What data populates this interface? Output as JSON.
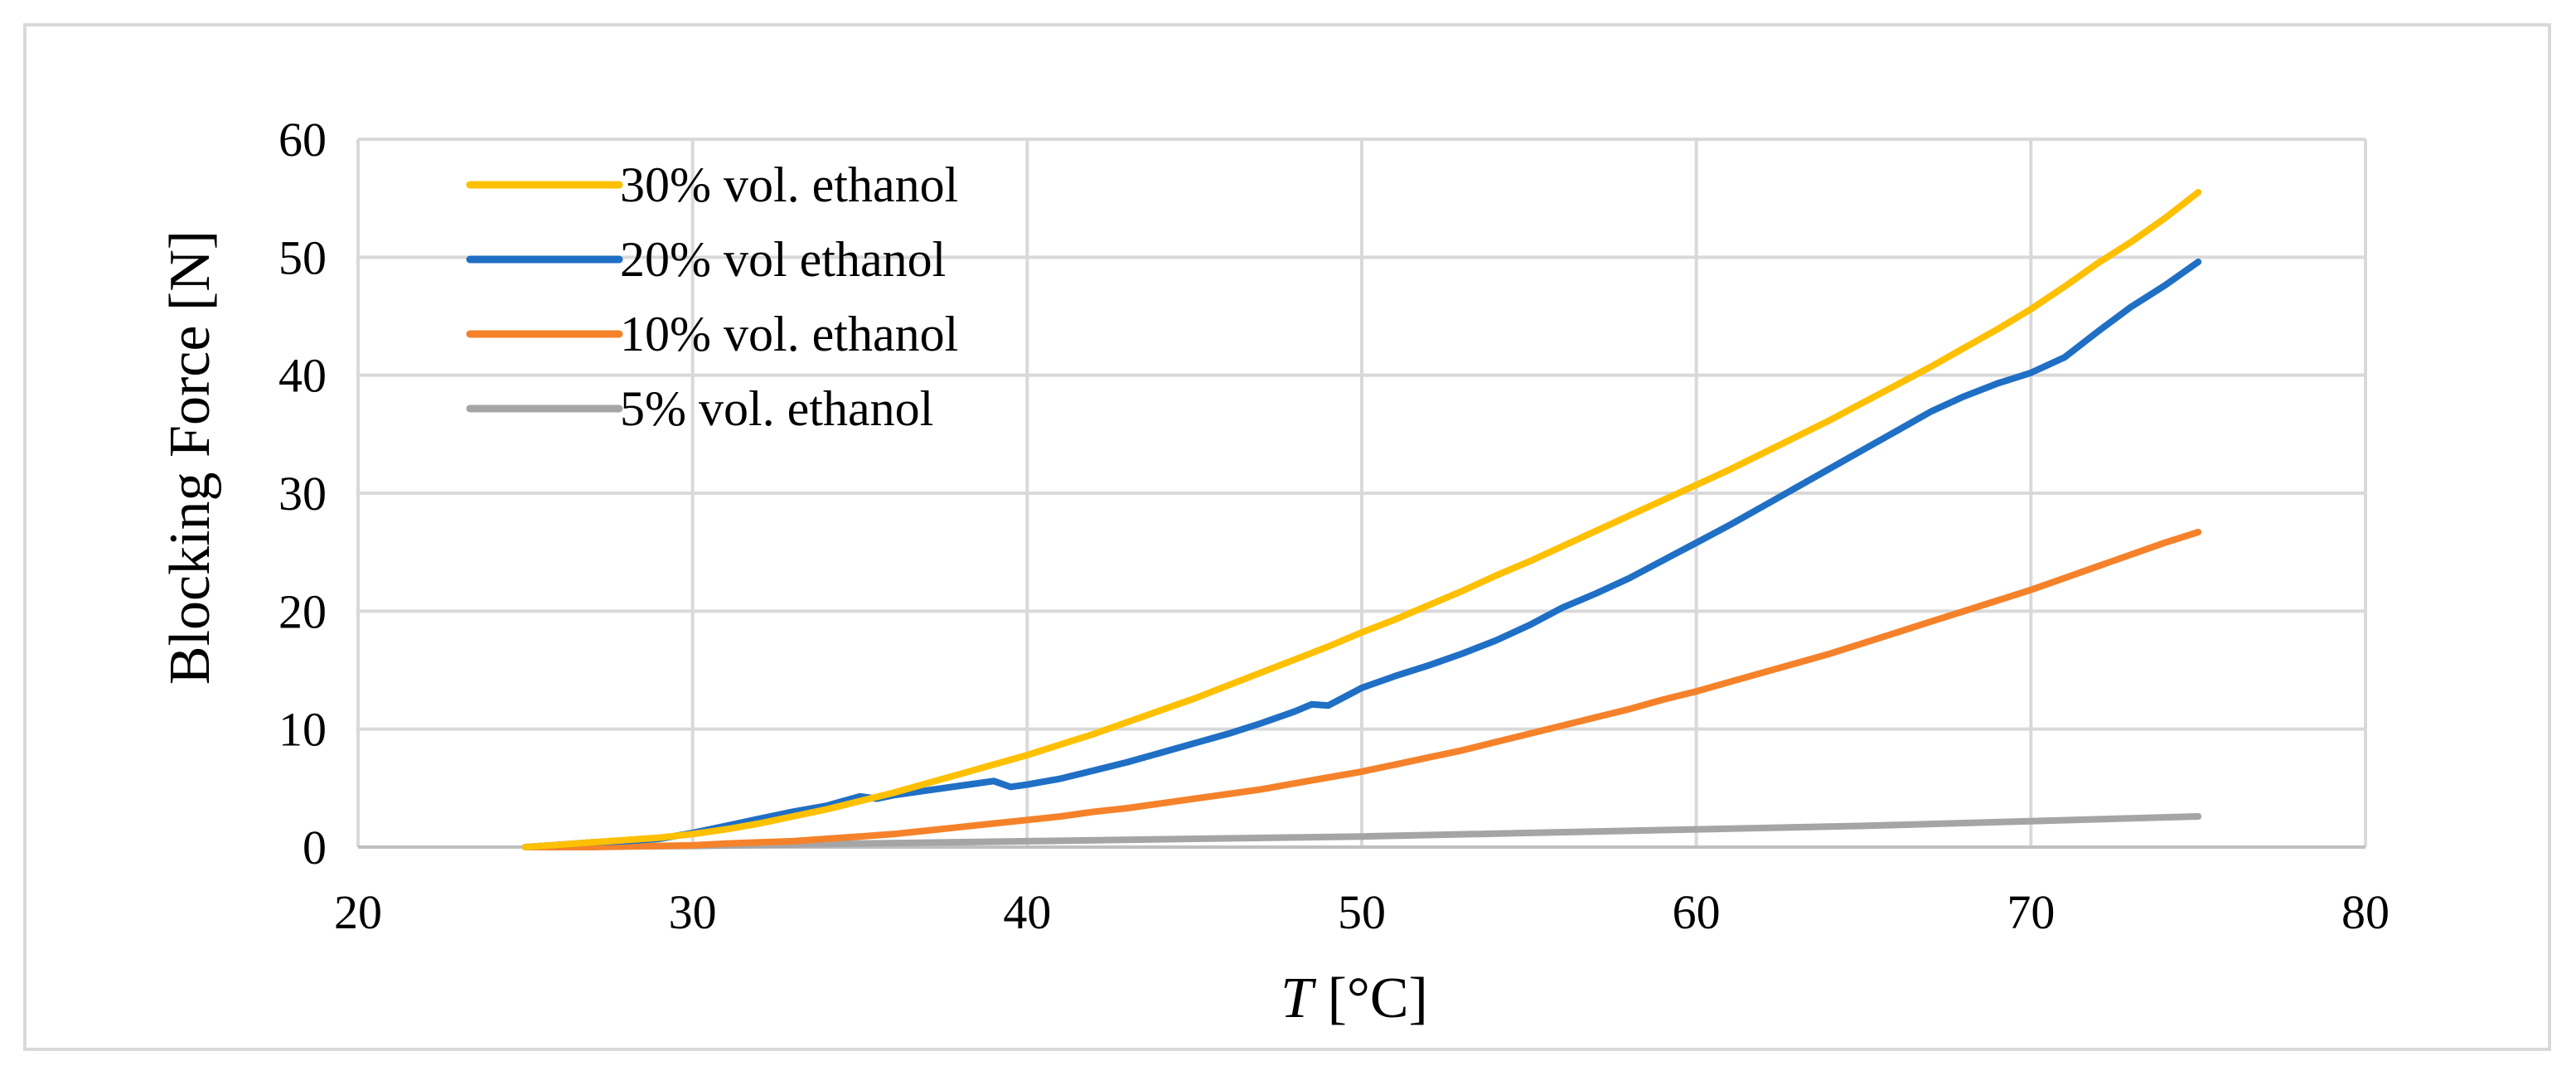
{
  "chart_data": {
    "type": "line",
    "title": "",
    "xlabel_var": "T",
    "xlabel_unit": " [°C]",
    "ylabel": "Blocking Force [N]",
    "xlim": [
      20,
      80
    ],
    "ylim": [
      0,
      60
    ],
    "xticks": [
      20,
      30,
      40,
      50,
      60,
      70,
      80
    ],
    "yticks": [
      0,
      10,
      20,
      30,
      40,
      50,
      60
    ],
    "grid": true,
    "legend_position": "top-left",
    "series": [
      {
        "name": "30% vol. ethanol",
        "color": "#ffc000",
        "points": [
          [
            25,
            0
          ],
          [
            26,
            0.2
          ],
          [
            27,
            0.4
          ],
          [
            28,
            0.6
          ],
          [
            29,
            0.8
          ],
          [
            30,
            1.1
          ],
          [
            31,
            1.5
          ],
          [
            32,
            2
          ],
          [
            33,
            2.6
          ],
          [
            34,
            3.2
          ],
          [
            35,
            3.9
          ],
          [
            36,
            4.6
          ],
          [
            37,
            5.4
          ],
          [
            38,
            6.2
          ],
          [
            39,
            7
          ],
          [
            40,
            7.8
          ],
          [
            41,
            8.7
          ],
          [
            42,
            9.6
          ],
          [
            43,
            10.6
          ],
          [
            44,
            11.6
          ],
          [
            45,
            12.6
          ],
          [
            46,
            13.7
          ],
          [
            47,
            14.8
          ],
          [
            48,
            15.9
          ],
          [
            49,
            17
          ],
          [
            50,
            18.2
          ],
          [
            51,
            19.3
          ],
          [
            52,
            20.5
          ],
          [
            53,
            21.7
          ],
          [
            54,
            23
          ],
          [
            55,
            24.2
          ],
          [
            56,
            25.5
          ],
          [
            57,
            26.8
          ],
          [
            58,
            28.1
          ],
          [
            59,
            29.4
          ],
          [
            60,
            30.7
          ],
          [
            61,
            32
          ],
          [
            62,
            33.4
          ],
          [
            63,
            34.8
          ],
          [
            64,
            36.2
          ],
          [
            65,
            37.7
          ],
          [
            66,
            39.2
          ],
          [
            67,
            40.7
          ],
          [
            68,
            42.3
          ],
          [
            69,
            43.9
          ],
          [
            70,
            45.6
          ],
          [
            71,
            47.5
          ],
          [
            72,
            49.5
          ],
          [
            73,
            51.3
          ],
          [
            74,
            53.3
          ],
          [
            75,
            55.5
          ]
        ]
      },
      {
        "name": "20% vol ethanol",
        "color": "#1f6fc5",
        "points": [
          [
            25,
            0
          ],
          [
            26,
            0.2
          ],
          [
            27,
            0.4
          ],
          [
            28,
            0.5
          ],
          [
            29,
            0.7
          ],
          [
            30,
            1.2
          ],
          [
            31,
            1.8
          ],
          [
            32,
            2.4
          ],
          [
            33,
            3
          ],
          [
            34,
            3.5
          ],
          [
            35,
            4.3
          ],
          [
            35.5,
            4.1
          ],
          [
            36,
            4.4
          ],
          [
            37,
            4.8
          ],
          [
            38,
            5.2
          ],
          [
            39,
            5.6
          ],
          [
            39.5,
            5.1
          ],
          [
            40,
            5.3
          ],
          [
            41,
            5.8
          ],
          [
            42,
            6.5
          ],
          [
            43,
            7.2
          ],
          [
            44,
            8
          ],
          [
            45,
            8.8
          ],
          [
            46,
            9.6
          ],
          [
            47,
            10.5
          ],
          [
            48,
            11.5
          ],
          [
            48.5,
            12.1
          ],
          [
            49,
            12
          ],
          [
            50,
            13.5
          ],
          [
            51,
            14.5
          ],
          [
            52,
            15.4
          ],
          [
            53,
            16.4
          ],
          [
            54,
            17.5
          ],
          [
            55,
            18.8
          ],
          [
            56,
            20.3
          ],
          [
            57,
            21.5
          ],
          [
            58,
            22.8
          ],
          [
            59,
            24.3
          ],
          [
            60,
            25.8
          ],
          [
            61,
            27.3
          ],
          [
            62,
            28.9
          ],
          [
            63,
            30.5
          ],
          [
            64,
            32.1
          ],
          [
            65,
            33.7
          ],
          [
            66,
            35.3
          ],
          [
            67,
            36.9
          ],
          [
            68,
            38.2
          ],
          [
            69,
            39.3
          ],
          [
            70,
            40.2
          ],
          [
            71,
            41.5
          ],
          [
            72,
            43.7
          ],
          [
            73,
            45.8
          ],
          [
            74,
            47.6
          ],
          [
            75,
            49.6
          ]
        ]
      },
      {
        "name": "10% vol. ethanol",
        "color": "#f5822a",
        "points": [
          [
            25,
            0
          ],
          [
            27,
            0
          ],
          [
            29,
            0.1
          ],
          [
            30,
            0.15
          ],
          [
            31,
            0.3
          ],
          [
            32,
            0.4
          ],
          [
            33,
            0.5
          ],
          [
            34,
            0.7
          ],
          [
            35,
            0.9
          ],
          [
            36,
            1.1
          ],
          [
            37,
            1.4
          ],
          [
            38,
            1.7
          ],
          [
            39,
            2
          ],
          [
            40,
            2.3
          ],
          [
            41,
            2.6
          ],
          [
            42,
            3
          ],
          [
            43,
            3.3
          ],
          [
            44,
            3.7
          ],
          [
            45,
            4.1
          ],
          [
            46,
            4.5
          ],
          [
            47,
            4.9
          ],
          [
            48,
            5.4
          ],
          [
            49,
            5.9
          ],
          [
            50,
            6.4
          ],
          [
            51,
            7
          ],
          [
            52,
            7.6
          ],
          [
            53,
            8.2
          ],
          [
            54,
            8.9
          ],
          [
            55,
            9.6
          ],
          [
            56,
            10.3
          ],
          [
            57,
            11
          ],
          [
            58,
            11.7
          ],
          [
            59,
            12.5
          ],
          [
            60,
            13.2
          ],
          [
            61,
            14
          ],
          [
            62,
            14.8
          ],
          [
            63,
            15.6
          ],
          [
            64,
            16.4
          ],
          [
            65,
            17.3
          ],
          [
            66,
            18.2
          ],
          [
            67,
            19.1
          ],
          [
            68,
            20
          ],
          [
            69,
            20.9
          ],
          [
            70,
            21.8
          ],
          [
            71,
            22.8
          ],
          [
            72,
            23.8
          ],
          [
            73,
            24.8
          ],
          [
            74,
            25.8
          ],
          [
            75,
            26.7
          ]
        ]
      },
      {
        "name": "5% vol. ethanol",
        "color": "#a5a5a5",
        "points": [
          [
            25,
            0
          ],
          [
            30,
            0.1
          ],
          [
            35,
            0.3
          ],
          [
            40,
            0.5
          ],
          [
            45,
            0.7
          ],
          [
            50,
            0.9
          ],
          [
            55,
            1.2
          ],
          [
            60,
            1.5
          ],
          [
            65,
            1.8
          ],
          [
            70,
            2.2
          ],
          [
            75,
            2.6
          ]
        ]
      }
    ]
  }
}
